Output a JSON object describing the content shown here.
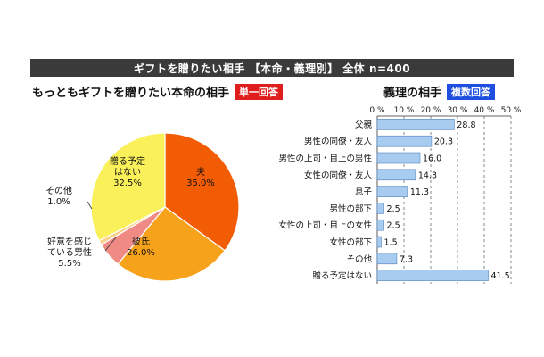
{
  "header": {
    "title": "ギフトを贈りたい相手 【本命・義理別】 全体 n=400"
  },
  "pie_section": {
    "heading": "もっともギフトを贈りたい本命の相手",
    "badge": "単一回答"
  },
  "bar_section": {
    "heading": "義理の相手",
    "badge": "複数回答"
  },
  "chart_data": [
    {
      "type": "pie",
      "start_angle_deg": 0,
      "direction": "clockwise",
      "slices": [
        {
          "label": "夫",
          "value": 35.0,
          "value_text": "35.0%",
          "color": "#f25c05"
        },
        {
          "label": "彼氏",
          "value": 26.0,
          "value_text": "26.0%",
          "color": "#f7a21b"
        },
        {
          "label": "好意を感じている男性",
          "label_lines": [
            "好意を感じ",
            "ている男性"
          ],
          "value": 5.5,
          "value_text": "5.5%",
          "color": "#f08a85"
        },
        {
          "label": "その他",
          "value": 1.0,
          "value_text": "1.0%",
          "color": "#fbd08a"
        },
        {
          "label": "贈る予定はない",
          "label_lines": [
            "贈る予定",
            "はない"
          ],
          "value": 32.5,
          "value_text": "32.5%",
          "color": "#f9f05a"
        }
      ]
    },
    {
      "type": "bar",
      "orientation": "horizontal",
      "categories": [
        "父親",
        "男性の同僚・友人",
        "男性の上司・目上の男性",
        "女性の同僚・友人",
        "息子",
        "男性の部下",
        "女性の上司・目上の女性",
        "女性の部下",
        "その他",
        "贈る予定はない"
      ],
      "values": [
        28.8,
        20.3,
        16.0,
        14.3,
        11.3,
        2.5,
        2.5,
        1.5,
        7.3,
        41.5
      ],
      "value_labels": [
        "28.8",
        "20.3",
        "16.0",
        "14.3",
        "11.3",
        "2.5",
        "2.5",
        "1.5",
        "7.3",
        "41.5"
      ],
      "xlim": [
        0,
        50
      ],
      "xticks": [
        "0 %",
        "10 %",
        "20 %",
        "30 %",
        "40 %",
        "50 %"
      ],
      "bar_color": "#a8ccf0",
      "bar_edge": "#4f81bd",
      "grid": "dashed vertical"
    }
  ]
}
